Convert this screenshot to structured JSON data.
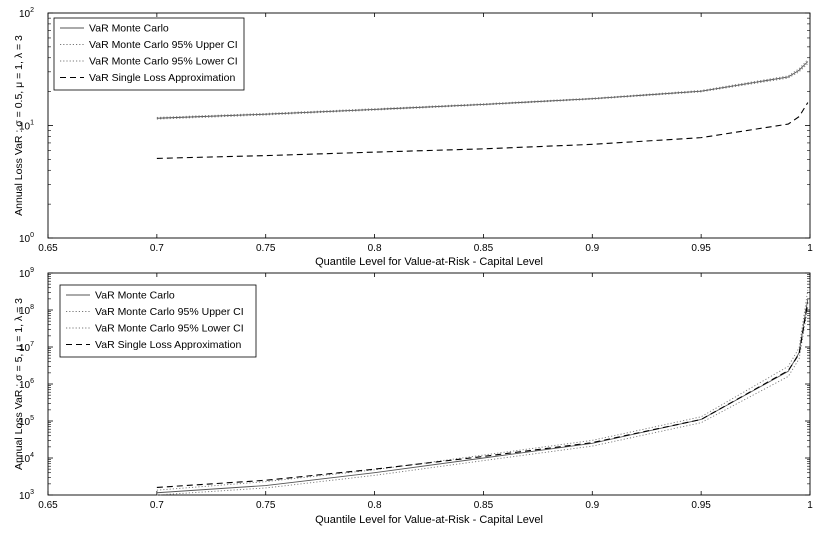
{
  "chart_data": [
    {
      "type": "line",
      "xlabel": "Quantile Level for Value-at-Risk - Capital Level",
      "ylabel": "Annual Loss VaR : σ = 0.5, μ = 1, λ = 3",
      "xlim": [
        0.65,
        1.0
      ],
      "ylim": [
        1,
        100
      ],
      "yscale": "log",
      "x_ticks": [
        "0.65",
        "0.7",
        "0.75",
        "0.8",
        "0.85",
        "0.9",
        "0.95",
        "1"
      ],
      "y_ticks": [
        {
          "base": "10",
          "exp": "0"
        },
        {
          "base": "10",
          "exp": "1"
        },
        {
          "base": "10",
          "exp": "2"
        }
      ],
      "legend_position": "top-left",
      "series": [
        {
          "name": "VaR Monte Carlo",
          "style": "solid",
          "color": "#555555",
          "x": [
            0.7,
            0.75,
            0.8,
            0.85,
            0.9,
            0.95,
            0.99,
            0.995,
            0.999
          ],
          "y": [
            11.6,
            12.6,
            13.9,
            15.4,
            17.3,
            20.2,
            27.0,
            31.0,
            37.0
          ]
        },
        {
          "name": "VaR Monte Carlo 95% Upper CI",
          "style": "dotted",
          "color": "#777777",
          "x": [
            0.7,
            0.75,
            0.8,
            0.85,
            0.9,
            0.95,
            0.99,
            0.995,
            0.999
          ],
          "y": [
            11.8,
            12.8,
            14.1,
            15.6,
            17.5,
            20.5,
            27.6,
            32.0,
            38.5
          ]
        },
        {
          "name": "VaR Monte Carlo 95% Lower CI",
          "style": "dotted",
          "color": "#777777",
          "x": [
            0.7,
            0.75,
            0.8,
            0.85,
            0.9,
            0.95,
            0.99,
            0.995,
            0.999
          ],
          "y": [
            11.4,
            12.4,
            13.7,
            15.2,
            17.1,
            19.9,
            26.4,
            30.0,
            35.5
          ]
        },
        {
          "name": "VaR Single Loss Approximation",
          "style": "dashed",
          "color": "#000000",
          "x": [
            0.7,
            0.75,
            0.8,
            0.85,
            0.9,
            0.95,
            0.99,
            0.995,
            0.999
          ],
          "y": [
            5.1,
            5.4,
            5.8,
            6.2,
            6.8,
            7.8,
            10.3,
            12.0,
            16.0
          ]
        }
      ]
    },
    {
      "type": "line",
      "xlabel": "Quantile Level for Value-at-Risk - Capital Level",
      "ylabel": "Annual Loss VaR : σ = 5, μ = 1, λ = 3",
      "xlim": [
        0.65,
        1.0
      ],
      "ylim": [
        1000,
        1000000000
      ],
      "yscale": "log",
      "x_ticks": [
        "0.65",
        "0.7",
        "0.75",
        "0.8",
        "0.85",
        "0.9",
        "0.95",
        "1"
      ],
      "y_ticks": [
        {
          "base": "10",
          "exp": "3"
        },
        {
          "base": "10",
          "exp": "4"
        },
        {
          "base": "10",
          "exp": "5"
        },
        {
          "base": "10",
          "exp": "6"
        },
        {
          "base": "10",
          "exp": "7"
        },
        {
          "base": "10",
          "exp": "8"
        },
        {
          "base": "10",
          "exp": "9"
        }
      ],
      "legend_position": "top-left",
      "series": [
        {
          "name": "VaR Monte Carlo",
          "style": "solid",
          "color": "#555555",
          "x": [
            0.7,
            0.75,
            0.8,
            0.85,
            0.9,
            0.95,
            0.99,
            0.995,
            0.999
          ],
          "y": [
            1150,
            1800,
            4000,
            10000,
            25000,
            110000,
            2200000,
            7000000,
            200000000
          ]
        },
        {
          "name": "VaR Monte Carlo 95% Upper CI",
          "style": "dotted",
          "color": "#777777",
          "x": [
            0.7,
            0.75,
            0.8,
            0.85,
            0.9,
            0.95,
            0.99,
            0.995,
            0.999
          ],
          "y": [
            1350,
            2300,
            4800,
            12000,
            30000,
            130000,
            3000000,
            9500000,
            350000000
          ]
        },
        {
          "name": "VaR Monte Carlo 95% Lower CI",
          "style": "dotted",
          "color": "#777777",
          "x": [
            0.7,
            0.75,
            0.8,
            0.85,
            0.9,
            0.95,
            0.99,
            0.995,
            0.999
          ],
          "y": [
            1000,
            1550,
            3400,
            8500,
            21000,
            90000,
            1600000,
            4800000,
            120000000
          ]
        },
        {
          "name": "VaR Single Loss Approximation",
          "style": "dashed",
          "color": "#000000",
          "x": [
            0.7,
            0.75,
            0.8,
            0.85,
            0.9,
            0.95,
            0.99,
            0.995,
            0.999
          ],
          "y": [
            1600,
            2500,
            5000,
            11000,
            26000,
            110000,
            2300000,
            6500000,
            160000000
          ]
        }
      ]
    }
  ]
}
